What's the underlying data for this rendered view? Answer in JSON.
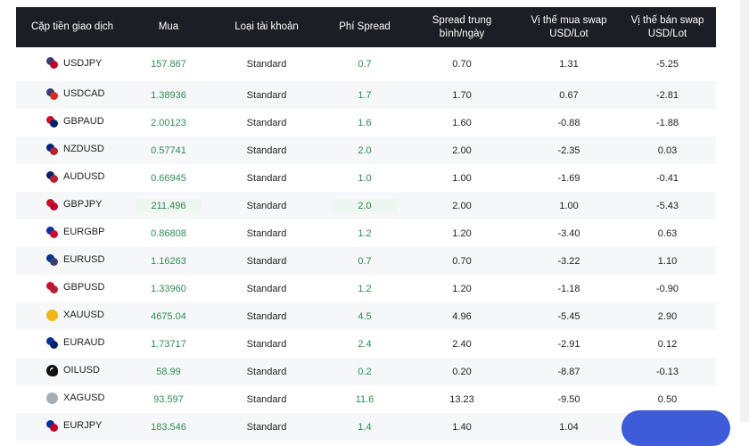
{
  "table": {
    "headers": {
      "pair": "Cặp tiền giao dịch",
      "buy": "Mua",
      "account": "Loại tài khoản",
      "spread": "Phí Spread",
      "avg_spread": "Spread trung bình/ngày",
      "swap_long": "Vị thế mua swap USD/Lot",
      "swap_short": "Vị thế bán swap USD/Lot"
    },
    "rows": [
      {
        "pair": "USDJPY",
        "buy": "157.867",
        "account": "Standard",
        "spread": "0.7",
        "avg_spread": "0.70",
        "swap_long": "1.31",
        "swap_short": "-5.25",
        "flag": [
          "#3c3b6e",
          "#bc002d"
        ]
      },
      {
        "pair": "USDCAD",
        "buy": "1.38936",
        "account": "Standard",
        "spread": "1.7",
        "avg_spread": "1.70",
        "swap_long": "0.67",
        "swap_short": "-2.81",
        "flag": [
          "#3c3b6e",
          "#d52b1e"
        ]
      },
      {
        "pair": "GBPAUD",
        "buy": "2.00123",
        "account": "Standard",
        "spread": "1.6",
        "avg_spread": "1.60",
        "swap_long": "-0.88",
        "swap_short": "-1.88",
        "flag": [
          "#c8102e",
          "#012169"
        ]
      },
      {
        "pair": "NZDUSD",
        "buy": "0.57741",
        "account": "Standard",
        "spread": "2.0",
        "avg_spread": "2.00",
        "swap_long": "-2.35",
        "swap_short": "0.03",
        "flag": [
          "#00247d",
          "#b22234"
        ]
      },
      {
        "pair": "AUDUSD",
        "buy": "0.66945",
        "account": "Standard",
        "spread": "1.0",
        "avg_spread": "1.00",
        "swap_long": "-1.69",
        "swap_short": "-0.41",
        "flag": [
          "#012169",
          "#b22234"
        ]
      },
      {
        "pair": "GBPJPY",
        "buy": "211.496",
        "account": "Standard",
        "spread": "2.0",
        "avg_spread": "2.00",
        "swap_long": "1.00",
        "swap_short": "-5.43",
        "flag": [
          "#c8102e",
          "#bc002d"
        ]
      },
      {
        "pair": "EURGBP",
        "buy": "0.86808",
        "account": "Standard",
        "spread": "1.2",
        "avg_spread": "1.20",
        "swap_long": "-3.40",
        "swap_short": "0.63",
        "flag": [
          "#003399",
          "#c8102e"
        ]
      },
      {
        "pair": "EURUSD",
        "buy": "1.16263",
        "account": "Standard",
        "spread": "0.7",
        "avg_spread": "0.70",
        "swap_long": "-3.22",
        "swap_short": "1.10",
        "flag": [
          "#003399",
          "#3c3b6e"
        ]
      },
      {
        "pair": "GBPUSD",
        "buy": "1.33960",
        "account": "Standard",
        "spread": "1.2",
        "avg_spread": "1.20",
        "swap_long": "-1.18",
        "swap_short": "-0.90",
        "flag": [
          "#c8102e",
          "#b22234"
        ]
      },
      {
        "pair": "XAUUSD",
        "buy": "4675.04",
        "account": "Standard",
        "spread": "4.5",
        "avg_spread": "4.96",
        "swap_long": "-5.45",
        "swap_short": "2.90",
        "flag": [
          "#f2b61b",
          "#f2b61b"
        ],
        "kind": "metal"
      },
      {
        "pair": "EURAUD",
        "buy": "1.73717",
        "account": "Standard",
        "spread": "2.4",
        "avg_spread": "2.40",
        "swap_long": "-2.91",
        "swap_short": "0.12",
        "flag": [
          "#003399",
          "#012169"
        ]
      },
      {
        "pair": "OILUSD",
        "buy": "58.99",
        "account": "Standard",
        "spread": "0.2",
        "avg_spread": "0.20",
        "swap_long": "-8.87",
        "swap_short": "-0.13",
        "flag": [
          "#111111",
          "#111111"
        ],
        "kind": "oil"
      },
      {
        "pair": "XAGUSD",
        "buy": "93.597",
        "account": "Standard",
        "spread": "11.6",
        "avg_spread": "13.23",
        "swap_long": "-9.50",
        "swap_short": "0.50",
        "flag": [
          "#a9adb3",
          "#a9adb3"
        ],
        "kind": "metal"
      },
      {
        "pair": "EURJPY",
        "buy": "183.546",
        "account": "Standard",
        "spread": "1.4",
        "avg_spread": "1.40",
        "swap_long": "1.04",
        "swap_short": "",
        "flag": [
          "#003399",
          "#bc002d"
        ]
      }
    ]
  },
  "colors": {
    "header_bg": "#1b1e24",
    "accent_green": "#2f8a55",
    "fab_blue": "#3e5bd9"
  },
  "icons": {
    "pair_flag": "currency-flag-icon",
    "fab": "chat-bubble-icon"
  }
}
